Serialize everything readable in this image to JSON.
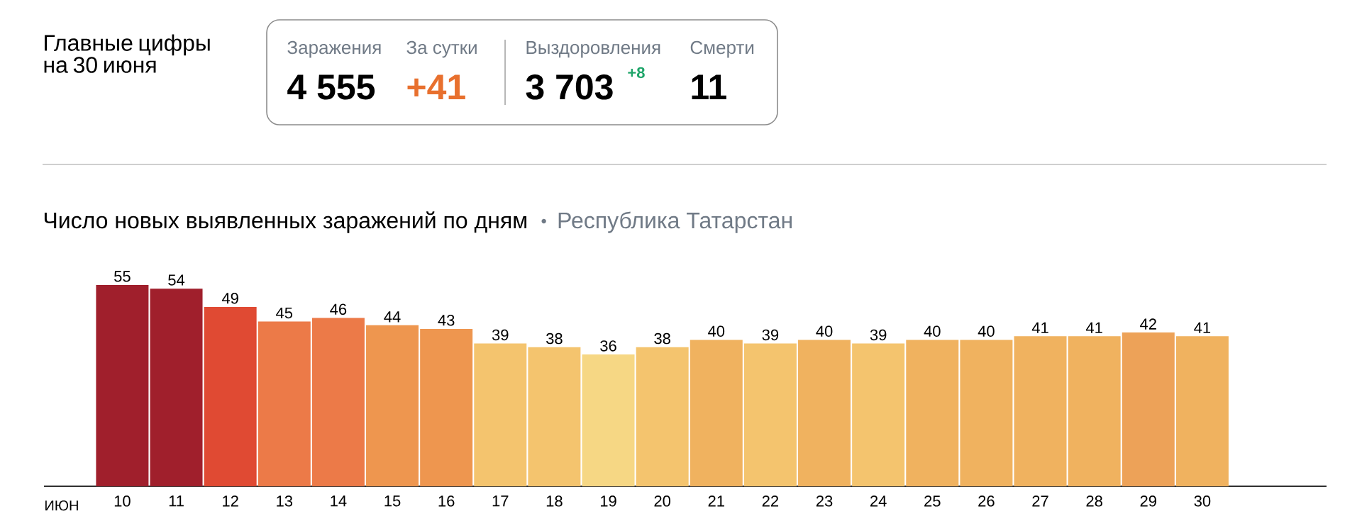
{
  "chart_data": [
    {
      "type": "other",
      "title": "Главные цифры на 30 июня",
      "annotations": [
        "Заражения",
        "4 555",
        "За сутки",
        "+41",
        "Выздоровления",
        "3 703",
        "+8",
        "Смерти",
        "11"
      ]
    },
    {
      "type": "bar",
      "title": "Число новых выявленных заражений по дням",
      "subtitle": "Республика Татарстан",
      "xlabel": "ИЮН",
      "categories": [
        "10",
        "11",
        "12",
        "13",
        "14",
        "15",
        "16",
        "17",
        "18",
        "19",
        "20",
        "21",
        "22",
        "23",
        "24",
        "25",
        "26",
        "27",
        "28",
        "29",
        "30"
      ],
      "values": [
        55,
        54,
        49,
        45,
        46,
        44,
        43,
        39,
        38,
        36,
        38,
        40,
        39,
        40,
        39,
        40,
        40,
        41,
        41,
        42,
        41
      ],
      "colors": [
        "#a01f2c",
        "#a01f2c",
        "#e04a33",
        "#ec7a48",
        "#ec7a48",
        "#ee964f",
        "#ee964f",
        "#f4c46e",
        "#f4c46e",
        "#f6d784",
        "#f4c46e",
        "#f0b25f",
        "#f4c46e",
        "#f0b25f",
        "#f4c46e",
        "#f0b25f",
        "#f0b25f",
        "#f0b25f",
        "#f0b25f",
        "#eda258",
        "#f0b25f"
      ],
      "data_labels": true
    }
  ]
}
